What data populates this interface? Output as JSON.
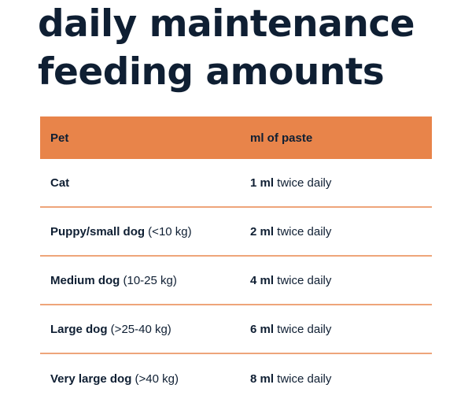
{
  "title": {
    "line1": "daily maintenance",
    "line2": "feeding amounts"
  },
  "colors": {
    "header_bg": "#e8844a",
    "divider": "#eea57a",
    "text": "#0f1f33"
  },
  "table": {
    "headers": [
      "Pet",
      "ml of paste"
    ],
    "rows": [
      {
        "pet": "Cat",
        "pet_note": "",
        "amount": "1 ml",
        "frequency": " twice daily"
      },
      {
        "pet": "Puppy/small dog",
        "pet_note": " (<10 kg)",
        "amount": "2 ml",
        "frequency": " twice daily"
      },
      {
        "pet": "Medium dog",
        "pet_note": " (10-25 kg)",
        "amount": "4 ml",
        "frequency": " twice daily"
      },
      {
        "pet": "Large dog",
        "pet_note": " (>25-40 kg)",
        "amount": "6 ml",
        "frequency": " twice daily"
      },
      {
        "pet": "Very large dog",
        "pet_note": " (>40 kg)",
        "amount": "8 ml",
        "frequency": " twice daily"
      }
    ]
  }
}
